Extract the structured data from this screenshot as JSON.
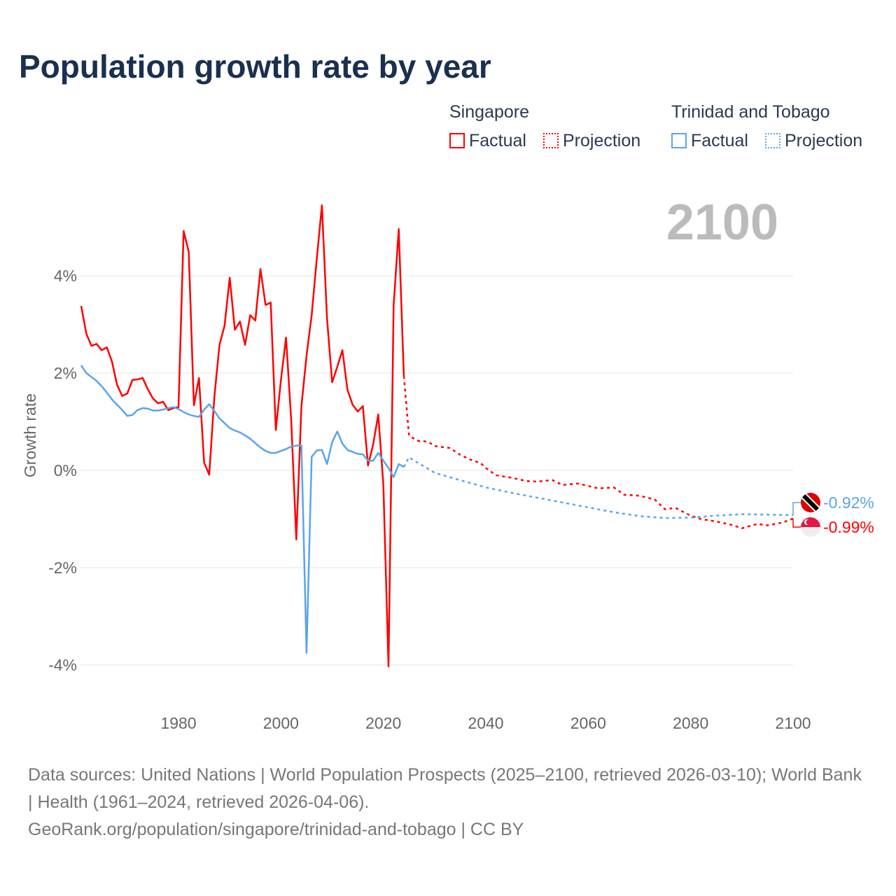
{
  "title": "Population growth rate by year",
  "legend": {
    "groups": [
      {
        "name": "Singapore",
        "factual": "Factual",
        "projection": "Projection",
        "color": "#ff0000"
      },
      {
        "name": "Trinidad and Tobago",
        "factual": "Factual",
        "projection": "Projection",
        "color": "#5aa5e8"
      }
    ]
  },
  "year_label": "2100",
  "end_labels": {
    "tt": "-0.92%",
    "sg": "-0.99%"
  },
  "sources": "Data sources: United Nations | World Population Prospects (2025–2100, retrieved 2026-03-10); World Bank | Health (1961–2024, retrieved 2026-04-06).",
  "credit": "GeoRank.org/population/singapore/trinidad-and-tobago | CC BY",
  "chart_data": {
    "type": "line",
    "xlabel": "",
    "ylabel": "Growth rate",
    "xlim": [
      1961,
      2100
    ],
    "ylim": [
      -5,
      6
    ],
    "xticks": [
      1980,
      2000,
      2020,
      2040,
      2060,
      2080,
      2100
    ],
    "yticks": [
      {
        "v": 4,
        "l": "4%"
      },
      {
        "v": 2,
        "l": "2%"
      },
      {
        "v": 0,
        "l": "0%"
      },
      {
        "v": -2,
        "l": "-2%"
      },
      {
        "v": -4,
        "l": "-4%"
      }
    ],
    "series": [
      {
        "name": "Singapore Factual",
        "color": "#ff0000",
        "dashed": false,
        "x_start": 1961,
        "values": [
          3.38,
          2.81,
          2.56,
          2.6,
          2.47,
          2.53,
          2.24,
          1.76,
          1.53,
          1.58,
          1.86,
          1.87,
          1.9,
          1.67,
          1.48,
          1.38,
          1.41,
          1.24,
          1.28,
          1.3,
          4.92,
          4.49,
          1.34,
          1.9,
          0.16,
          -0.09,
          1.51,
          2.58,
          2.98,
          3.96,
          2.89,
          3.06,
          2.58,
          3.19,
          3.08,
          4.14,
          3.4,
          3.45,
          0.83,
          1.86,
          2.73,
          1.04,
          -1.42,
          1.32,
          2.36,
          3.19,
          4.35,
          5.45,
          3.12,
          1.81,
          2.13,
          2.47,
          1.65,
          1.35,
          1.21,
          1.32,
          0.1,
          0.53,
          1.15,
          -0.3,
          -4.03,
          3.38,
          4.96,
          1.94
        ]
      },
      {
        "name": "Singapore Projection",
        "color": "#ff0000",
        "dashed": true,
        "points": [
          [
            2024,
            1.94
          ],
          [
            2025,
            0.72
          ],
          [
            2026,
            0.65
          ],
          [
            2027,
            0.6
          ],
          [
            2028,
            0.6
          ],
          [
            2029,
            0.57
          ],
          [
            2030,
            0.5
          ],
          [
            2033,
            0.46
          ],
          [
            2035,
            0.32
          ],
          [
            2037,
            0.22
          ],
          [
            2039,
            0.15
          ],
          [
            2040,
            0.05
          ],
          [
            2042,
            -0.1
          ],
          [
            2045,
            -0.15
          ],
          [
            2048,
            -0.22
          ],
          [
            2050,
            -0.23
          ],
          [
            2053,
            -0.2
          ],
          [
            2055,
            -0.3
          ],
          [
            2058,
            -0.27
          ],
          [
            2060,
            -0.32
          ],
          [
            2062,
            -0.37
          ],
          [
            2065,
            -0.35
          ],
          [
            2067,
            -0.5
          ],
          [
            2070,
            -0.52
          ],
          [
            2073,
            -0.6
          ],
          [
            2075,
            -0.8
          ],
          [
            2077,
            -0.77
          ],
          [
            2080,
            -0.93
          ],
          [
            2082,
            -1.0
          ],
          [
            2085,
            -1.05
          ],
          [
            2088,
            -1.12
          ],
          [
            2090,
            -1.19
          ],
          [
            2093,
            -1.1
          ],
          [
            2095,
            -1.13
          ],
          [
            2098,
            -1.07
          ],
          [
            2100,
            -0.99
          ]
        ]
      },
      {
        "name": "Trinidad and Tobago Factual",
        "color": "#5aa5e8",
        "dashed": false,
        "x_start": 1961,
        "values": [
          2.16,
          2.0,
          1.92,
          1.84,
          1.73,
          1.6,
          1.46,
          1.35,
          1.24,
          1.12,
          1.14,
          1.24,
          1.28,
          1.27,
          1.23,
          1.23,
          1.25,
          1.28,
          1.3,
          1.26,
          1.2,
          1.15,
          1.12,
          1.1,
          1.25,
          1.36,
          1.22,
          1.07,
          0.97,
          0.87,
          0.82,
          0.78,
          0.72,
          0.65,
          0.56,
          0.47,
          0.4,
          0.36,
          0.36,
          0.4,
          0.44,
          0.49,
          0.51,
          0.51,
          -3.75,
          0.28,
          0.41,
          0.42,
          0.13,
          0.58,
          0.8,
          0.55,
          0.42,
          0.38,
          0.34,
          0.33,
          0.2,
          0.2,
          0.36,
          0.2,
          0.05,
          -0.14,
          0.13,
          0.07
        ]
      },
      {
        "name": "Trinidad and Tobago Projection",
        "color": "#5aa5e8",
        "dashed": true,
        "points": [
          [
            2024,
            0.07
          ],
          [
            2025,
            0.27
          ],
          [
            2026,
            0.2
          ],
          [
            2028,
            0.08
          ],
          [
            2030,
            -0.05
          ],
          [
            2035,
            -0.2
          ],
          [
            2040,
            -0.35
          ],
          [
            2045,
            -0.46
          ],
          [
            2050,
            -0.56
          ],
          [
            2055,
            -0.66
          ],
          [
            2060,
            -0.76
          ],
          [
            2065,
            -0.86
          ],
          [
            2070,
            -0.94
          ],
          [
            2075,
            -0.98
          ],
          [
            2080,
            -0.97
          ],
          [
            2085,
            -0.93
          ],
          [
            2090,
            -0.9
          ],
          [
            2095,
            -0.91
          ],
          [
            2100,
            -0.92
          ]
        ]
      }
    ]
  }
}
